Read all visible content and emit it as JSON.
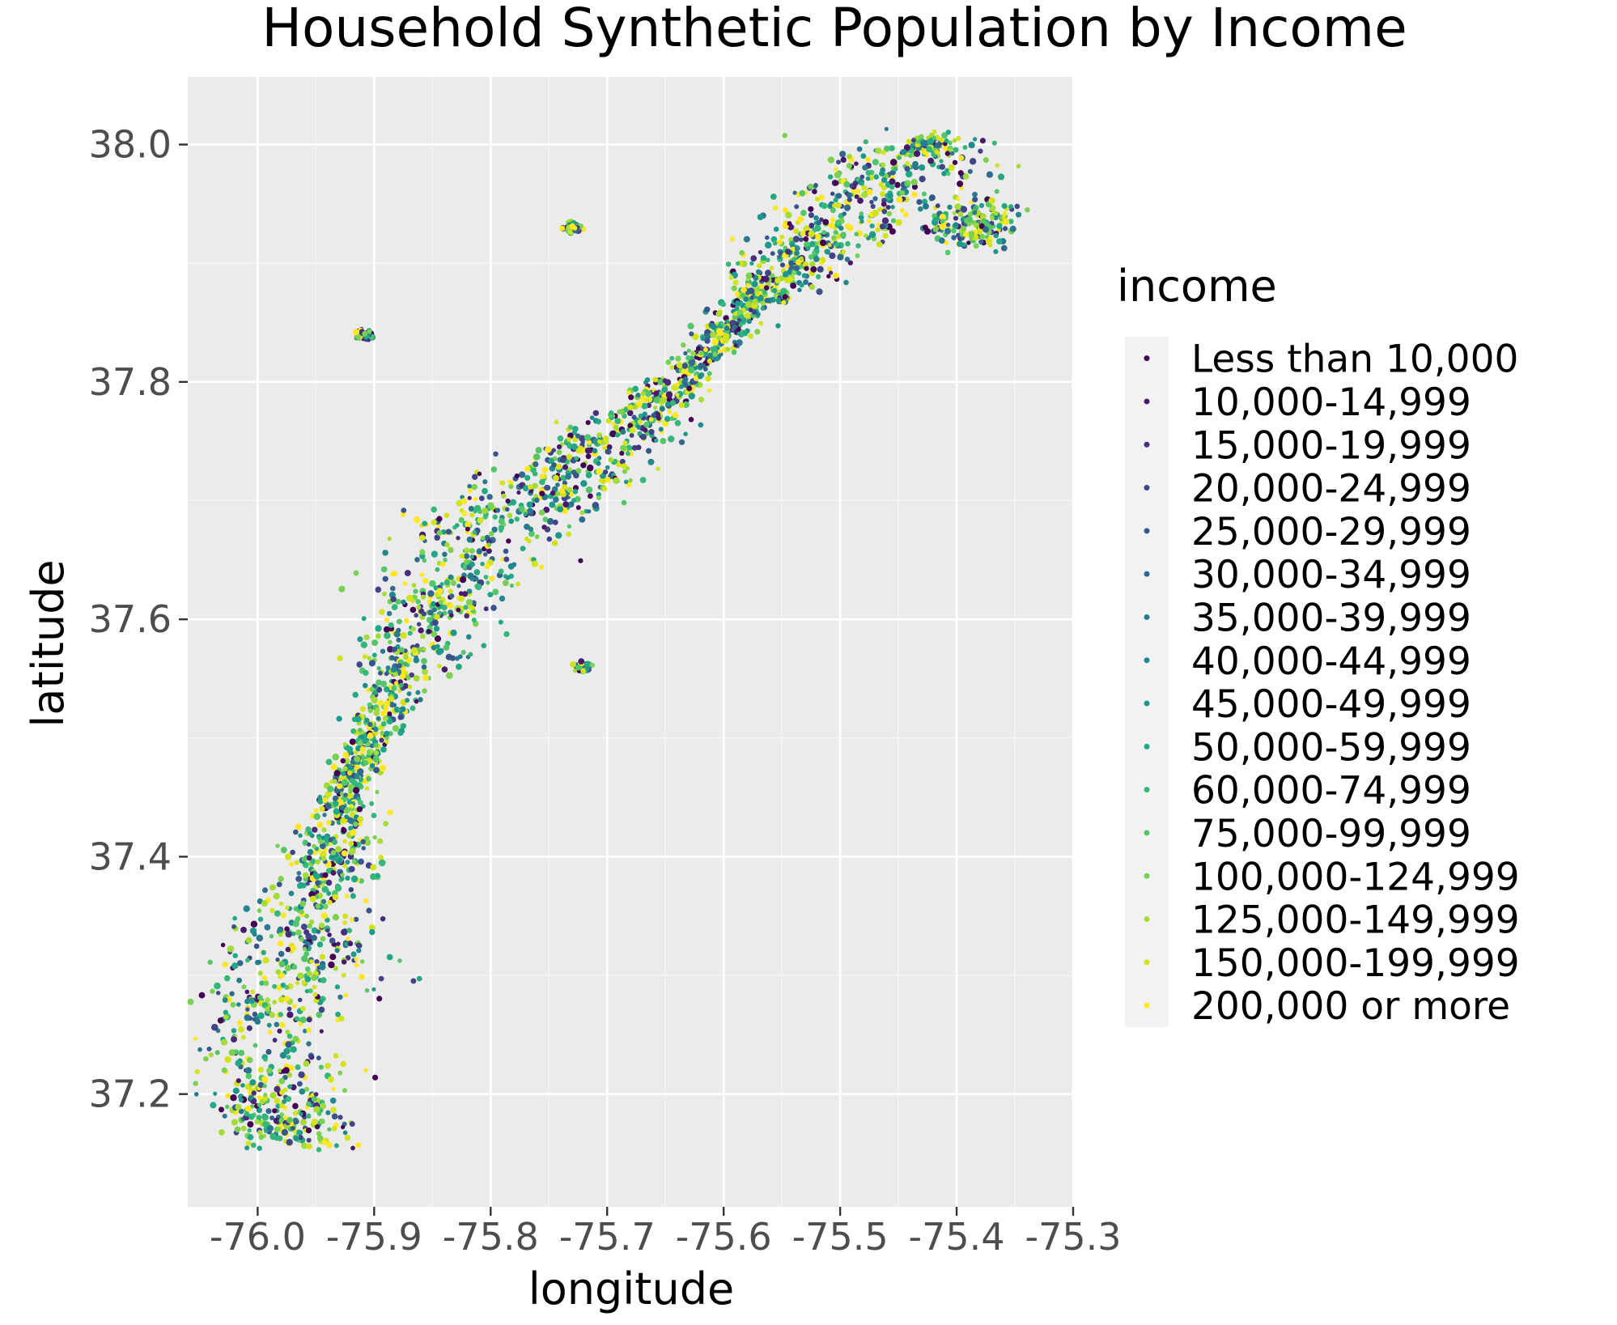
{
  "chart_data": {
    "type": "scatter",
    "title": "Household Synthetic Population by Income",
    "xlabel": "longitude",
    "ylabel": "latitude",
    "xlim": [
      -76.06,
      -75.3
    ],
    "ylim": [
      37.105,
      38.057
    ],
    "x_ticks": [
      -76.0,
      -75.9,
      -75.8,
      -75.7,
      -75.6,
      -75.5,
      -75.4,
      -75.3
    ],
    "x_tick_labels": [
      "-76.0",
      "-75.9",
      "-75.8",
      "-75.7",
      "-75.6",
      "-75.5",
      "-75.4",
      "-75.3"
    ],
    "y_ticks": [
      37.2,
      37.4,
      37.6,
      37.8,
      38.0
    ],
    "y_tick_labels": [
      "37.2",
      "37.4",
      "37.6",
      "37.8",
      "38.0"
    ],
    "grid": true,
    "background": "#ebebeb",
    "legend": {
      "title": "income",
      "position": "right",
      "entries": [
        {
          "label": "Less than 10,000",
          "color": "#440154"
        },
        {
          "label": "10,000-14,999",
          "color": "#481a6c"
        },
        {
          "label": "15,000-19,999",
          "color": "#472f7d"
        },
        {
          "label": "20,000-24,999",
          "color": "#414487"
        },
        {
          "label": "25,000-29,999",
          "color": "#39568c"
        },
        {
          "label": "30,000-34,999",
          "color": "#31688e"
        },
        {
          "label": "35,000-39,999",
          "color": "#2a788e"
        },
        {
          "label": "40,000-44,999",
          "color": "#23888e"
        },
        {
          "label": "45,000-49,999",
          "color": "#1f988b"
        },
        {
          "label": "50,000-59,999",
          "color": "#22a884"
        },
        {
          "label": "60,000-74,999",
          "color": "#35b779"
        },
        {
          "label": "75,000-99,999",
          "color": "#54c568"
        },
        {
          "label": "100,000-124,999",
          "color": "#7ad151"
        },
        {
          "label": "125,000-149,999",
          "color": "#a5db36"
        },
        {
          "label": "150,000-199,999",
          "color": "#d2e21b"
        },
        {
          "label": "200,000 or more",
          "color": "#fde725"
        }
      ]
    },
    "spine_points": [
      [
        -75.97,
        37.16
      ],
      [
        -75.985,
        37.2
      ],
      [
        -75.99,
        37.26
      ],
      [
        -75.96,
        37.32
      ],
      [
        -75.94,
        37.38
      ],
      [
        -75.93,
        37.44
      ],
      [
        -75.9,
        37.5
      ],
      [
        -75.87,
        37.56
      ],
      [
        -75.84,
        37.62
      ],
      [
        -75.8,
        37.68
      ],
      [
        -75.74,
        37.72
      ],
      [
        -75.68,
        37.76
      ],
      [
        -75.64,
        37.8
      ],
      [
        -75.6,
        37.84
      ],
      [
        -75.56,
        37.88
      ],
      [
        -75.52,
        37.92
      ],
      [
        -75.47,
        37.96
      ],
      [
        -75.43,
        38.0
      ]
    ],
    "clusters": [
      {
        "x": -75.91,
        "y": 37.84,
        "size": 0.006
      },
      {
        "x": -75.73,
        "y": 37.93,
        "size": 0.006
      },
      {
        "x": -75.72,
        "y": 37.56,
        "size": 0.006
      },
      {
        "x": -75.55,
        "y": 37.87,
        "size": 0.004
      },
      {
        "x": -75.42,
        "y": 38.0,
        "size": 0.012
      },
      {
        "x": -75.385,
        "y": 37.935,
        "size": 0.03
      }
    ],
    "num_points": 4200
  }
}
